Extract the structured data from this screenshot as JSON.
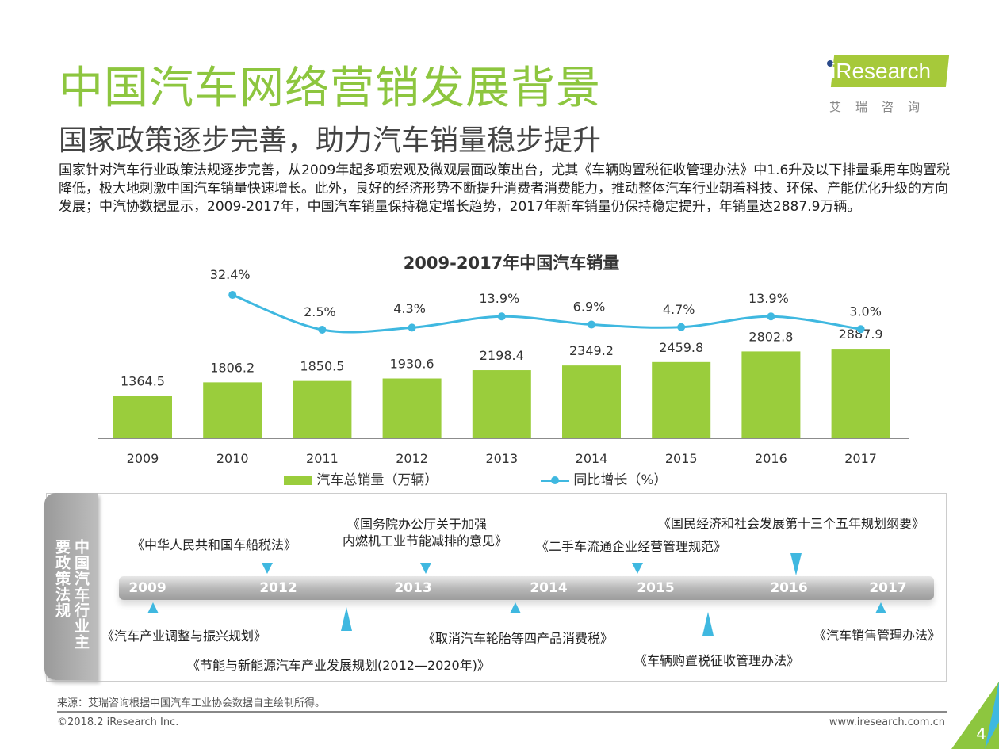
{
  "header": {
    "title": "中国汽车网络营销发展背景",
    "subtitle": "国家政策逐步完善，助力汽车销量稳步提升",
    "intro": "国家针对汽车行业政策法规逐步完善，从2009年起多项宏观及微观层面政策出台，尤其《车辆购置税征收管理办法》中1.6升及以下排量乘用车购置税降低，极大地刺激中国汽车销量快速增长。此外，良好的经济形势不断提升消费者消费能力，推动整体汽车行业朝着科技、环保、产能优化升级的方向发展；中汽协数据显示，2009-2017年，中国汽车销量保持稳定增长趋势，2017年新车销量仍保持稳定提升，年销量达2887.9万辆。"
  },
  "logo": {
    "brand": "iResearch",
    "cn": "艾瑞咨询"
  },
  "chart_data": {
    "type": "bar+line",
    "title": "2009-2017年中国汽车销量",
    "categories": [
      "2009",
      "2010",
      "2011",
      "2012",
      "2013",
      "2014",
      "2015",
      "2016",
      "2017"
    ],
    "series": [
      {
        "name": "汽车总销量（万辆）",
        "type": "bar",
        "values": [
          1364.5,
          1806.2,
          1850.5,
          1930.6,
          2198.4,
          2349.2,
          2459.8,
          2802.8,
          2887.9
        ],
        "labels": [
          "1364.5",
          "1806.2",
          "1850.5",
          "1930.6",
          "2198.4",
          "2349.2",
          "2459.8",
          "2802.8",
          "2887.9"
        ],
        "color": "#9acd3c"
      },
      {
        "name": "同比增长（%）",
        "type": "line",
        "values": [
          null,
          32.4,
          2.5,
          4.3,
          13.9,
          6.9,
          4.7,
          13.9,
          3.0
        ],
        "labels": [
          "",
          "32.4%",
          "2.5%",
          "4.3%",
          "13.9%",
          "6.9%",
          "4.7%",
          "13.9%",
          "3.0%"
        ],
        "color": "#3fb8e0"
      }
    ],
    "legend_position": "bottom",
    "grid": false
  },
  "timeline": {
    "side_label": "中国汽车行业主要政策法规",
    "years": [
      "2009",
      "2012",
      "2013",
      "2014",
      "2015",
      "2016",
      "2017"
    ],
    "policies_above": [
      "《中华人民共和国车船税法》",
      "《国务院办公厅关于加强",
      "内燃机工业节能减排的意见》",
      "《二手车流通企业经营管理规范》",
      "《国民经济和社会发展第十三个五年规划纲要》"
    ],
    "policies_below": [
      "《汽车产业调整与振兴规划》",
      "《节能与新能源汽车产业发展规划(2012—2020年)》",
      "《取消汽车轮胎等四产品消费税》",
      "《车辆购置税征收管理办法》",
      "《汽车销售管理办法》"
    ]
  },
  "footer": {
    "source": "来源：艾瑞咨询根据中国汽车工业协会数据自主绘制所得。",
    "copyright": "©2018.2  iResearch Inc.",
    "website": "www.iresearch.com.cn",
    "page": "4"
  }
}
